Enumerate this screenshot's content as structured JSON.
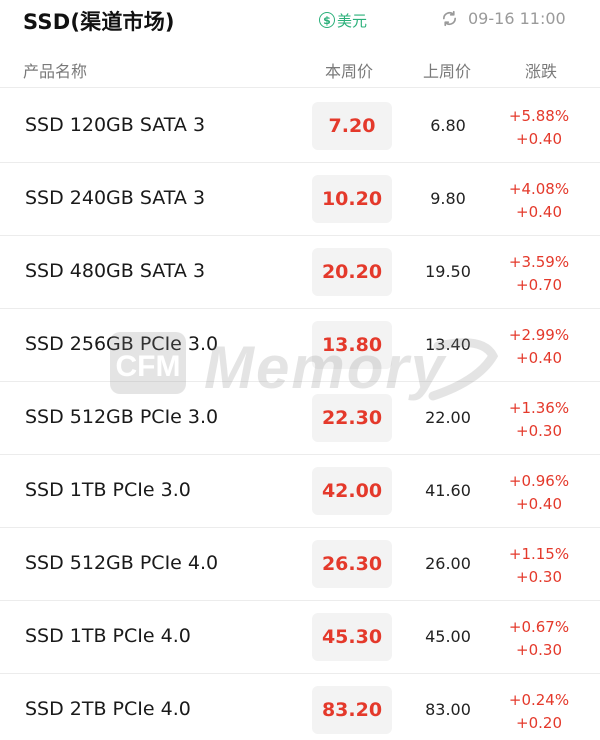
{
  "header": {
    "title": "SSD(渠道市场)",
    "currency_symbol": "$",
    "currency_label": "美元",
    "timestamp": "09-16 11:00"
  },
  "columns": {
    "name": "产品名称",
    "current": "本周价",
    "previous": "上周价",
    "change": "涨跌"
  },
  "rows": [
    {
      "name": "SSD 120GB SATA 3",
      "current": "7.20",
      "previous": "6.80",
      "change_pct": "+5.88%",
      "change_abs": "+0.40"
    },
    {
      "name": "SSD 240GB SATA 3",
      "current": "10.20",
      "previous": "9.80",
      "change_pct": "+4.08%",
      "change_abs": "+0.40"
    },
    {
      "name": "SSD 480GB SATA 3",
      "current": "20.20",
      "previous": "19.50",
      "change_pct": "+3.59%",
      "change_abs": "+0.70"
    },
    {
      "name": "SSD 256GB PCIe 3.0",
      "current": "13.80",
      "previous": "13.40",
      "change_pct": "+2.99%",
      "change_abs": "+0.40"
    },
    {
      "name": "SSD 512GB PCIe 3.0",
      "current": "22.30",
      "previous": "22.00",
      "change_pct": "+1.36%",
      "change_abs": "+0.30"
    },
    {
      "name": "SSD 1TB PCIe 3.0",
      "current": "42.00",
      "previous": "41.60",
      "change_pct": "+0.96%",
      "change_abs": "+0.40"
    },
    {
      "name": "SSD 512GB PCIe 4.0",
      "current": "26.30",
      "previous": "26.00",
      "change_pct": "+1.15%",
      "change_abs": "+0.30"
    },
    {
      "name": "SSD 1TB PCIe 4.0",
      "current": "45.30",
      "previous": "45.00",
      "change_pct": "+0.67%",
      "change_abs": "+0.30"
    },
    {
      "name": "SSD 2TB PCIe 4.0",
      "current": "83.20",
      "previous": "83.00",
      "change_pct": "+0.24%",
      "change_abs": "+0.20"
    }
  ],
  "watermark": {
    "logo": "CFM",
    "brand": "Memory"
  },
  "colors": {
    "accent_green": "#2bb07a",
    "rise_red": "#e4392b",
    "muted_gray": "#9a9a9a"
  },
  "icons": {
    "currency": "dollar-circle-icon",
    "refresh": "refresh-icon"
  }
}
